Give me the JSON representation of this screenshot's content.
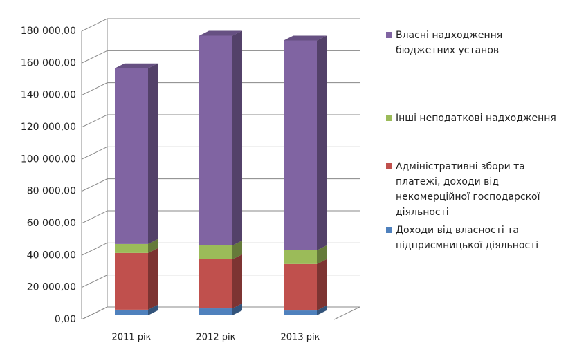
{
  "chart_data": {
    "type": "bar3d_stacked",
    "categories": [
      "2011 рік",
      "2012 рік",
      "2013 рік"
    ],
    "series": [
      {
        "name": "Доходи від власності та підприємницької діяльності",
        "color": "#4f81bd",
        "values": [
          3500,
          4300,
          3000
        ]
      },
      {
        "name": "Адміністративні збори та платежі, доходи від некомерційної господарскої діяльності",
        "color": "#c0504d",
        "values": [
          35400,
          30700,
          29000
        ]
      },
      {
        "name": "Інші неподаткові надходження",
        "color": "#9bbb59",
        "values": [
          5600,
          8600,
          8600
        ]
      },
      {
        "name": "Власні надходження бюджетних установ",
        "color": "#8064a2",
        "values": [
          109700,
          131000,
          131000
        ]
      }
    ],
    "ylim": [
      0,
      180000
    ],
    "yticks": [
      {
        "value": 0,
        "label": "0,00"
      },
      {
        "value": 20000,
        "label": "20 000,00"
      },
      {
        "value": 40000,
        "label": "40 000,00"
      },
      {
        "value": 60000,
        "label": "60 000,00"
      },
      {
        "value": 80000,
        "label": "80 000,00"
      },
      {
        "value": 100000,
        "label": "100 000,00"
      },
      {
        "value": 120000,
        "label": "120 000,00"
      },
      {
        "value": 140000,
        "label": "140 000,00"
      },
      {
        "value": 160000,
        "label": "160 000,00"
      },
      {
        "value": 180000,
        "label": "180 000,00"
      }
    ],
    "grid": true,
    "legend": "right"
  }
}
